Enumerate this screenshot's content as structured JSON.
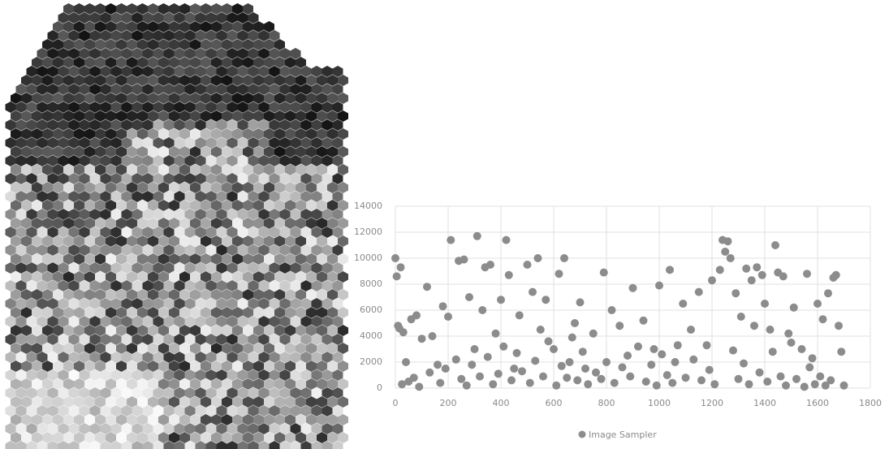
{
  "chart_data": {
    "type": "scatter",
    "x": [
      0,
      5,
      10,
      15,
      20,
      30,
      40,
      50,
      60,
      80,
      100,
      120,
      140,
      160,
      180,
      200,
      210,
      230,
      240,
      260,
      280,
      300,
      310,
      330,
      340,
      360,
      380,
      400,
      420,
      430,
      450,
      470,
      500,
      520,
      540,
      550,
      570,
      600,
      620,
      640,
      660,
      680,
      700,
      720,
      750,
      790,
      820,
      850,
      880,
      900,
      940,
      980,
      1000,
      1040,
      1060,
      1090,
      1120,
      1150,
      1180,
      1200,
      1230,
      1240,
      1250,
      1260,
      1270,
      1290,
      1310,
      1330,
      1350,
      1370,
      1390,
      1400,
      1420,
      1440,
      1450,
      1470,
      1490,
      1510,
      1540,
      1560,
      1580,
      1600,
      1620,
      1640,
      1660,
      1670,
      1680,
      1690,
      1700,
      25,
      70,
      90,
      130,
      170,
      190,
      250,
      270,
      290,
      320,
      350,
      370,
      390,
      410,
      440,
      460,
      480,
      510,
      530,
      560,
      580,
      610,
      630,
      650,
      670,
      690,
      710,
      730,
      760,
      780,
      800,
      830,
      860,
      890,
      920,
      950,
      970,
      990,
      1010,
      1030,
      1050,
      1070,
      1100,
      1130,
      1160,
      1190,
      1210,
      1280,
      1300,
      1320,
      1340,
      1360,
      1380,
      1410,
      1430,
      1460,
      1480,
      1500,
      1520,
      1550,
      1570,
      1590,
      1610,
      1630,
      1650
    ],
    "series": [
      {
        "name": "Image Sampler",
        "color": "#8c8c8c",
        "values": [
          10000,
          8600,
          4800,
          4600,
          9300,
          4300,
          2000,
          500,
          5300,
          5600,
          3800,
          7800,
          4000,
          1800,
          6300,
          5500,
          11400,
          2200,
          9800,
          9900,
          7000,
          3000,
          11700,
          6000,
          9300,
          9500,
          4200,
          6800,
          11400,
          8700,
          1500,
          5600,
          9500,
          7400,
          10000,
          4500,
          6800,
          3000,
          8800,
          10000,
          2000,
          5000,
          6600,
          1500,
          4200,
          8900,
          6000,
          4800,
          2500,
          7700,
          5200,
          3000,
          7900,
          9100,
          2000,
          6500,
          4500,
          7400,
          3300,
          8300,
          9100,
          11400,
          10500,
          11300,
          10000,
          7300,
          5500,
          9200,
          8300,
          9300,
          8700,
          6500,
          4500,
          11000,
          8900,
          8600,
          4200,
          6200,
          3000,
          8800,
          2300,
          6500,
          5300,
          7300,
          8500,
          8700,
          4800,
          2800,
          200,
          300,
          800,
          100,
          1200,
          400,
          1500,
          700,
          200,
          1800,
          900,
          2400,
          300,
          1100,
          3200,
          600,
          2700,
          1300,
          400,
          2100,
          900,
          3600,
          200,
          1700,
          800,
          3900,
          600,
          2800,
          300,
          1200,
          700,
          2000,
          400,
          1600,
          900,
          3200,
          500,
          1800,
          200,
          2600,
          1000,
          400,
          3300,
          800,
          2200,
          600,
          1400,
          300,
          2900,
          700,
          1900,
          300,
          4800,
          1200,
          500,
          2800,
          900,
          200,
          3500,
          700,
          100,
          1600,
          300,
          900,
          200,
          600
        ]
      }
    ],
    "xlim": [
      0,
      1800
    ],
    "xticks": [
      0,
      200,
      400,
      600,
      800,
      1000,
      1200,
      1400,
      1600,
      1800
    ],
    "ylim": [
      0,
      14000
    ],
    "yticks": [
      0,
      2000,
      4000,
      6000,
      8000,
      10000,
      12000,
      14000
    ],
    "grid": true,
    "legend": "bottom"
  }
}
